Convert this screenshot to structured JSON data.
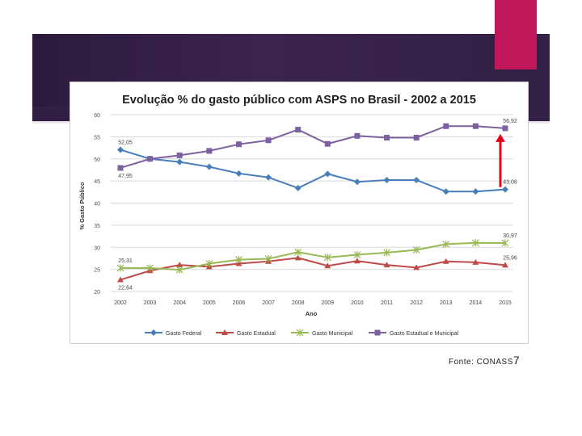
{
  "colors": {
    "banner": "#352046",
    "accent": "#c0185a",
    "federal": "#4a7ebb",
    "estadual": "#be4b48",
    "municipal": "#98b954",
    "estadual_municipal": "#7d60a0",
    "arrow": "#e8001c"
  },
  "chart_data": {
    "type": "line",
    "title": "Evolução % do gasto público com ASPS no Brasil - 2002 a 2015",
    "xlabel": "Ano",
    "ylabel": "% Gasto Público",
    "ylim": [
      20,
      60
    ],
    "yticks": [
      "20",
      "25",
      "30",
      "35",
      "40",
      "45",
      "50",
      "55",
      "60"
    ],
    "categories": [
      "2002",
      "2003",
      "2004",
      "2005",
      "2006",
      "2007",
      "2008",
      "2009",
      "2010",
      "2011",
      "2012",
      "2013",
      "2014",
      "2015"
    ],
    "series": [
      {
        "key": "federal",
        "name": "Gasto Federal",
        "marker": "diamond",
        "values": [
          52.05,
          50.0,
          49.3,
          48.2,
          46.7,
          45.8,
          43.4,
          46.6,
          44.8,
          45.2,
          45.2,
          42.6,
          42.6,
          43.08
        ]
      },
      {
        "key": "estadual",
        "name": "Gasto Estadual",
        "marker": "triangle",
        "values": [
          22.64,
          24.7,
          26.0,
          25.6,
          26.3,
          26.8,
          27.6,
          25.8,
          26.9,
          26.0,
          25.4,
          26.8,
          26.6,
          25.96
        ]
      },
      {
        "key": "municipal",
        "name": "Gasto Municipal",
        "marker": "star",
        "values": [
          25.31,
          25.3,
          24.9,
          26.3,
          27.2,
          27.4,
          28.9,
          27.7,
          28.3,
          28.8,
          29.4,
          30.7,
          31.0,
          30.97
        ]
      },
      {
        "key": "estadual_municipal",
        "name": "Gasto Estadual e Municipal",
        "marker": "square",
        "values": [
          47.95,
          50.0,
          50.8,
          51.8,
          53.3,
          54.2,
          56.6,
          53.4,
          55.2,
          54.8,
          54.8,
          57.4,
          57.4,
          56.92
        ]
      }
    ],
    "data_labels": [
      {
        "series": "federal",
        "index": 0,
        "text": "52,05",
        "pos": "above"
      },
      {
        "series": "estadual_municipal",
        "index": 0,
        "text": "47,95",
        "pos": "below"
      },
      {
        "series": "estadual_municipal",
        "index": 13,
        "text": "56,92",
        "pos": "above"
      },
      {
        "series": "federal",
        "index": 13,
        "text": "43,08",
        "pos": "above"
      },
      {
        "series": "municipal",
        "index": 0,
        "text": "25,31",
        "pos": "above"
      },
      {
        "series": "estadual",
        "index": 0,
        "text": "22,64",
        "pos": "below"
      },
      {
        "series": "municipal",
        "index": 13,
        "text": "30,97",
        "pos": "above"
      },
      {
        "series": "estadual",
        "index": 13,
        "text": "25,96",
        "pos": "above"
      }
    ],
    "arrow_annotation": {
      "category_index": 13,
      "from_value": 43.08,
      "to_value": 56.92
    },
    "legend_position": "bottom",
    "grid": true
  },
  "footer": {
    "source": "Fonte: CONASS",
    "slide_number": "7"
  }
}
